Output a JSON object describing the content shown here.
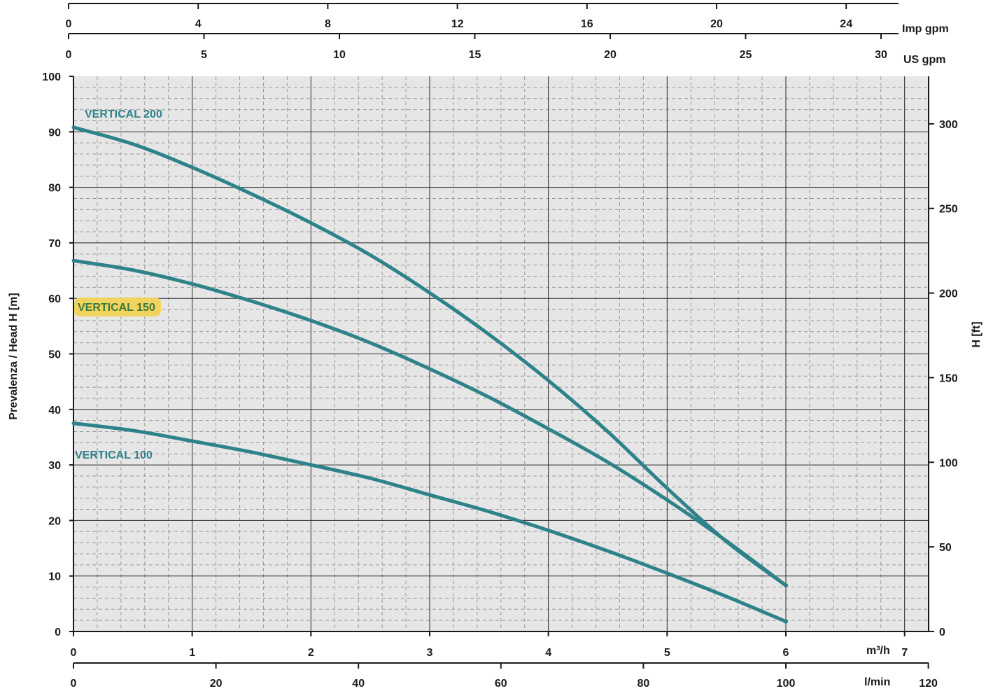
{
  "chart_data": {
    "type": "line",
    "title": "",
    "x_axis_bottom_primary": {
      "unit": "m³/h",
      "ticks": [
        "0",
        "1",
        "2",
        "3",
        "4",
        "5",
        "6",
        "7"
      ],
      "xlim": [
        0,
        7.2
      ]
    },
    "x_axis_bottom_secondary": {
      "unit": "l/min",
      "ticks": [
        "0",
        "20",
        "40",
        "60",
        "80",
        "100",
        "120"
      ]
    },
    "x_axis_top_inner": {
      "unit": "US gpm",
      "ticks": [
        "0",
        "5",
        "10",
        "15",
        "20",
        "25",
        "30"
      ]
    },
    "x_axis_top_outer": {
      "unit": "Imp gpm",
      "ticks": [
        "0",
        "4",
        "8",
        "12",
        "16",
        "20",
        "24"
      ]
    },
    "y_axis_left": {
      "label": "Prevalenza / Head H [m]",
      "ticks": [
        "0",
        "10",
        "20",
        "30",
        "40",
        "50",
        "60",
        "70",
        "80",
        "90",
        "100"
      ],
      "ylim": [
        0,
        100
      ]
    },
    "y_axis_right": {
      "label": "H [ft]",
      "ticks": [
        "0",
        "50",
        "100",
        "150",
        "200",
        "250",
        "300"
      ]
    },
    "grid": true,
    "series": [
      {
        "name": "VERTICAL 100",
        "color": "#2e8289",
        "x": [
          0,
          0.5,
          1,
          1.5,
          2,
          2.5,
          3,
          3.5,
          4,
          4.5,
          5,
          5.5,
          6
        ],
        "y": [
          37.5,
          36.2,
          34.3,
          32.3,
          30.0,
          27.6,
          24.6,
          21.6,
          18.2,
          14.5,
          10.5,
          6.3,
          1.8
        ]
      },
      {
        "name": "VERTICAL 150",
        "color": "#2e8289",
        "label_highlight": "#f2d35e",
        "x": [
          0,
          0.5,
          1,
          1.5,
          2,
          2.5,
          3,
          3.5,
          4,
          4.5,
          5,
          5.5,
          6
        ],
        "y": [
          66.8,
          65.1,
          62.6,
          59.5,
          56.0,
          52.0,
          47.3,
          42.2,
          36.5,
          30.5,
          23.7,
          16.3,
          8.3
        ]
      },
      {
        "name": "VERTICAL 200",
        "color": "#2e8289",
        "x": [
          0,
          0.5,
          1,
          1.5,
          2,
          2.5,
          3,
          3.5,
          4,
          4.5,
          5,
          5.5,
          6
        ],
        "y": [
          90.8,
          87.8,
          83.6,
          78.8,
          73.6,
          67.8,
          61.0,
          53.5,
          45.2,
          36.0,
          25.8,
          16.2,
          8.3
        ]
      }
    ],
    "colors": {
      "background": "#e6e6e6",
      "major_grid": "#2b2b2b",
      "minor_grid": "#9a9a9a",
      "curve": "#2e8289",
      "label_150": "#3a7a3e"
    }
  }
}
